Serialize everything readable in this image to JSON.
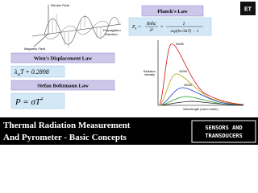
{
  "wave": {
    "electric": "Electric Field",
    "magnetic": "Magnetic Field",
    "propagation_1": "Propagation",
    "propagation_2": "Direction"
  },
  "wien": {
    "title": "Wien's Displacement Law",
    "formula_symbol": "λ",
    "formula_sub": "m",
    "formula_rest": "T = 0.2898"
  },
  "stefan": {
    "title": "Stefan Boltzmann Law",
    "formula_lhs": "P = σT",
    "formula_exp": "4"
  },
  "planck": {
    "title": "Planck's Law",
    "lhs": "E",
    "lhs_sub": "λ",
    "eq": "=",
    "num": "8πhc",
    "den": "λ⁵",
    "mul": "×",
    "num2": "1",
    "den2": "exp(hc/λkT) − 1",
    "y_label_1": "Radiation",
    "y_label_2": "Intensity",
    "x_label": "Wavelength (micro meter)",
    "curves": [
      "5000K",
      "4000K",
      "3000K"
    ]
  },
  "logo": "ET",
  "footer": {
    "title_1": "Thermal Radiation Measurement",
    "title_2": "And Pyrometer - Basic Concepts",
    "badge_1": "SENSORS AND",
    "badge_2": "TRANSDUCERS"
  }
}
